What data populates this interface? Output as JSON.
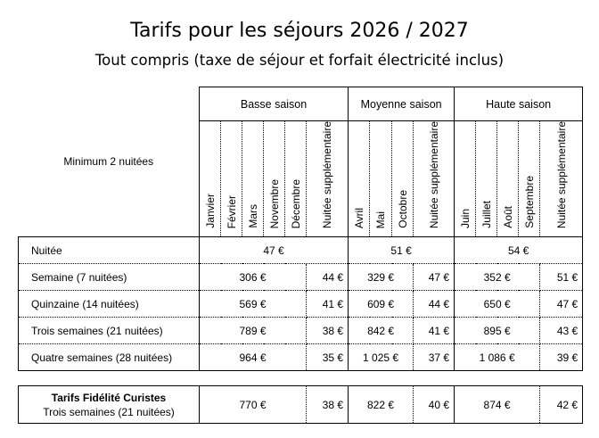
{
  "title": "Tarifs pour les séjours 2026 / 2027",
  "subtitle": "Tout compris (taxe de séjour et forfait électricité inclus)",
  "header": {
    "min_label": "Minimum 2 nuitées",
    "seasons": [
      {
        "name": "Basse saison",
        "months": [
          "Janvier",
          "Février",
          "Mars",
          "Novembre",
          "Décembre"
        ]
      },
      {
        "name": "Moyenne saison",
        "months": [
          "Avril",
          "Mai",
          "Octobre"
        ]
      },
      {
        "name": "Haute saison",
        "months": [
          "Juin",
          "Juillet",
          "Août",
          "Septembre"
        ]
      }
    ],
    "extra_label": "Nuitée supplémentaire"
  },
  "nuitee": {
    "label": "Nuitée",
    "values": [
      "47 €",
      "51 €",
      "54 €"
    ]
  },
  "rows": [
    {
      "label": "Semaine (7 nuitées)",
      "values": [
        [
          "306 €",
          "44 €"
        ],
        [
          "329 €",
          "47 €"
        ],
        [
          "352 €",
          "51 €"
        ]
      ]
    },
    {
      "label": "Quinzaine (14 nuitées)",
      "values": [
        [
          "569 €",
          "41 €"
        ],
        [
          "609 €",
          "44 €"
        ],
        [
          "650 €",
          "47 €"
        ]
      ]
    },
    {
      "label": "Trois semaines (21 nuitées)",
      "values": [
        [
          "789 €",
          "38 €"
        ],
        [
          "842 €",
          "41 €"
        ],
        [
          "895 €",
          "43 €"
        ]
      ]
    },
    {
      "label": "Quatre semaines (28 nuitées)",
      "values": [
        [
          "964 €",
          "35 €"
        ],
        [
          "1 025 €",
          "37 €"
        ],
        [
          "1 086 €",
          "39 €"
        ]
      ]
    }
  ],
  "fidelite": {
    "title": "Tarifs Fidélité Curistes",
    "label": "Trois semaines (21 nuitées)",
    "values": [
      [
        "770 €",
        "38 €"
      ],
      [
        "822 €",
        "40 €"
      ],
      [
        "874 €",
        "42 €"
      ]
    ]
  }
}
